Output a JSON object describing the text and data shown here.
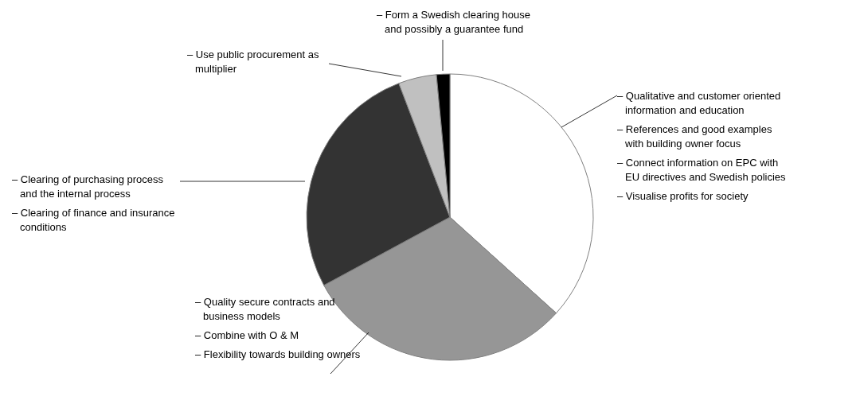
{
  "chart_data": {
    "type": "pie",
    "categories": [
      "– Qualitative and customer oriented information and education\n– References and good examples with building owner focus\n– Connect information on EPC with EU directives and Swedish policies\n– Visualise profits for society",
      "– Quality secure contracts and business models\n– Combine with O & M\n– Flexibility towards building owners",
      "– Clearing of purchasing process and the internal process\n– Clearing of finance and insurance conditions",
      "– Use public procurement as multiplier",
      "– Form a Swedish clearing house and possibly a guarantee fund"
    ],
    "values": [
      36.7,
      30.4,
      27.1,
      4.3,
      1.5
    ],
    "colors": [
      "#ffffff",
      "#969696",
      "#333333",
      "#c0c0c0",
      "#000000"
    ]
  }
}
